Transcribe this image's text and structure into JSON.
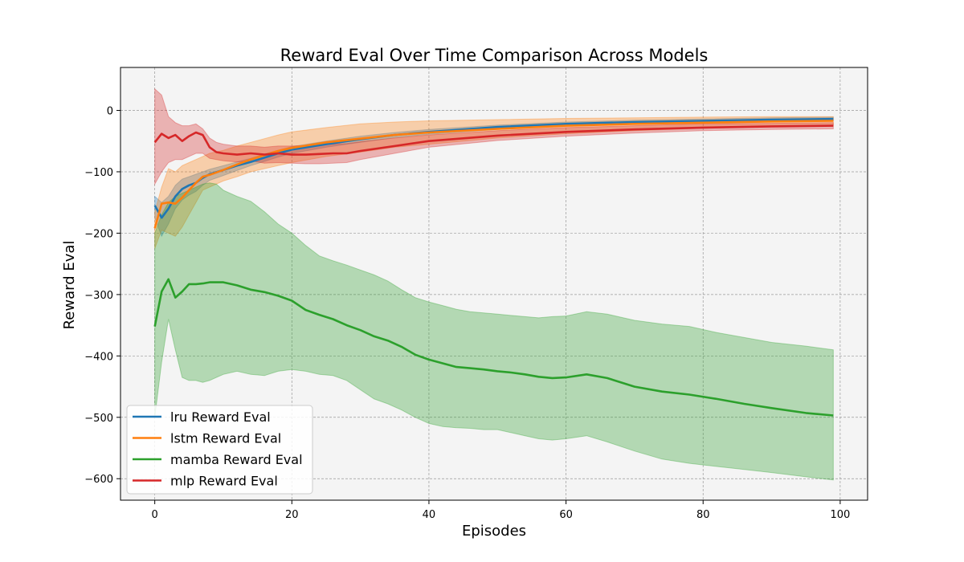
{
  "chart_data": {
    "type": "line",
    "title": "Reward Eval Over Time Comparison Across Models",
    "xlabel": "Episodes",
    "ylabel": "Reward Eval",
    "xlim": [
      -5,
      104
    ],
    "ylim": [
      -635,
      70
    ],
    "xticks": [
      0,
      20,
      40,
      60,
      80,
      100
    ],
    "yticks": [
      0,
      -100,
      -200,
      -300,
      -400,
      -500,
      -600
    ],
    "xtick_labels": [
      "0",
      "20",
      "40",
      "60",
      "80",
      "100"
    ],
    "ytick_labels": [
      "0",
      "−100",
      "−200",
      "−300",
      "−400",
      "−500",
      "−600"
    ],
    "grid": true,
    "legend_position": "lower-left",
    "background_color": "#f4f4f4",
    "series": [
      {
        "name": "lru Reward Eval",
        "color": "#1f77b4",
        "x": [
          0,
          1,
          2,
          3,
          4,
          5,
          6,
          7,
          8,
          10,
          12,
          14,
          16,
          18,
          20,
          25,
          30,
          35,
          40,
          50,
          60,
          70,
          80,
          90,
          99
        ],
        "mean": [
          -155,
          -175,
          -160,
          -140,
          -128,
          -122,
          -118,
          -110,
          -104,
          -97,
          -90,
          -84,
          -77,
          -70,
          -64,
          -55,
          -47,
          -40,
          -35,
          -27,
          -22,
          -19,
          -17,
          -15,
          -14
        ],
        "upper": [
          -140,
          -150,
          -140,
          -122,
          -112,
          -108,
          -104,
          -100,
          -96,
          -90,
          -84,
          -78,
          -71,
          -65,
          -59,
          -50,
          -42,
          -36,
          -31,
          -24,
          -19,
          -16,
          -14,
          -12,
          -11
        ],
        "lower": [
          -175,
          -205,
          -185,
          -160,
          -146,
          -138,
          -132,
          -122,
          -114,
          -106,
          -98,
          -90,
          -83,
          -76,
          -70,
          -60,
          -52,
          -44,
          -39,
          -31,
          -25,
          -22,
          -20,
          -18,
          -17
        ]
      },
      {
        "name": "lstm Reward Eval",
        "color": "#ff7f0e",
        "x": [
          0,
          1,
          2,
          3,
          4,
          5,
          6,
          7,
          8,
          10,
          12,
          14,
          16,
          18,
          20,
          25,
          30,
          35,
          40,
          50,
          60,
          70,
          80,
          90,
          99
        ],
        "mean": [
          -192,
          -152,
          -150,
          -152,
          -142,
          -130,
          -118,
          -108,
          -105,
          -97,
          -88,
          -80,
          -73,
          -66,
          -61,
          -52,
          -46,
          -40,
          -36,
          -30,
          -25,
          -22,
          -20,
          -18,
          -17
        ],
        "upper": [
          -165,
          -125,
          -95,
          -100,
          -90,
          -85,
          -80,
          -75,
          -70,
          -65,
          -58,
          -52,
          -46,
          -40,
          -35,
          -28,
          -22,
          -19,
          -17,
          -15,
          -13,
          -12,
          -11,
          -10,
          -10
        ],
        "lower": [
          -225,
          -195,
          -200,
          -205,
          -190,
          -170,
          -150,
          -130,
          -125,
          -115,
          -108,
          -100,
          -95,
          -90,
          -85,
          -75,
          -68,
          -60,
          -55,
          -45,
          -38,
          -33,
          -29,
          -26,
          -24
        ]
      },
      {
        "name": "mamba Reward Eval",
        "color": "#2ca02c",
        "x": [
          0,
          1,
          2,
          3,
          4,
          5,
          6,
          7,
          8,
          9,
          10,
          12,
          14,
          16,
          18,
          20,
          22,
          24,
          26,
          28,
          30,
          32,
          34,
          36,
          38,
          40,
          42,
          44,
          46,
          48,
          50,
          52,
          54,
          56,
          58,
          60,
          63,
          66,
          70,
          74,
          78,
          82,
          86,
          90,
          95,
          99
        ],
        "mean": [
          -352,
          -295,
          -275,
          -305,
          -295,
          -283,
          -283,
          -282,
          -280,
          -280,
          -280,
          -285,
          -292,
          -296,
          -302,
          -310,
          -325,
          -333,
          -340,
          -350,
          -358,
          -368,
          -375,
          -385,
          -398,
          -406,
          -412,
          -418,
          -420,
          -422,
          -425,
          -427,
          -430,
          -434,
          -436,
          -435,
          -430,
          -436,
          -450,
          -458,
          -463,
          -470,
          -478,
          -485,
          -493,
          -497
        ],
        "upper": [
          -200,
          -170,
          -150,
          -140,
          -135,
          -130,
          -125,
          -120,
          -118,
          -120,
          -130,
          -140,
          -148,
          -165,
          -185,
          -200,
          -220,
          -237,
          -245,
          -252,
          -260,
          -268,
          -278,
          -292,
          -305,
          -312,
          -318,
          -324,
          -328,
          -330,
          -332,
          -334,
          -336,
          -338,
          -336,
          -335,
          -328,
          -332,
          -342,
          -348,
          -352,
          -362,
          -370,
          -378,
          -384,
          -390
        ],
        "lower": [
          -500,
          -410,
          -340,
          -390,
          -435,
          -440,
          -440,
          -443,
          -440,
          -435,
          -430,
          -425,
          -430,
          -432,
          -425,
          -422,
          -425,
          -430,
          -432,
          -440,
          -455,
          -470,
          -478,
          -488,
          -500,
          -510,
          -515,
          -517,
          -518,
          -520,
          -520,
          -525,
          -530,
          -535,
          -537,
          -535,
          -530,
          -540,
          -555,
          -568,
          -575,
          -580,
          -585,
          -590,
          -597,
          -602
        ]
      },
      {
        "name": "mlp Reward Eval",
        "color": "#d62728",
        "x": [
          0,
          1,
          2,
          3,
          4,
          5,
          6,
          7,
          8,
          9,
          10,
          12,
          14,
          16,
          18,
          20,
          22,
          24,
          26,
          28,
          30,
          35,
          40,
          50,
          60,
          70,
          80,
          90,
          99
        ],
        "mean": [
          -52,
          -38,
          -45,
          -40,
          -50,
          -42,
          -36,
          -40,
          -60,
          -68,
          -70,
          -72,
          -70,
          -72,
          -70,
          -72,
          -72,
          -71,
          -70,
          -70,
          -66,
          -58,
          -50,
          -41,
          -35,
          -31,
          -28,
          -26,
          -25
        ],
        "upper": [
          35,
          25,
          -10,
          -20,
          -25,
          -25,
          -22,
          -30,
          -45,
          -52,
          -55,
          -58,
          -58,
          -60,
          -58,
          -58,
          -57,
          -56,
          -55,
          -54,
          -51,
          -45,
          -40,
          -33,
          -28,
          -25,
          -22,
          -21,
          -20
        ],
        "lower": [
          -120,
          -100,
          -85,
          -80,
          -80,
          -75,
          -70,
          -70,
          -78,
          -80,
          -82,
          -84,
          -82,
          -86,
          -85,
          -86,
          -87,
          -87,
          -86,
          -85,
          -80,
          -70,
          -60,
          -49,
          -42,
          -37,
          -33,
          -31,
          -30
        ]
      }
    ]
  }
}
